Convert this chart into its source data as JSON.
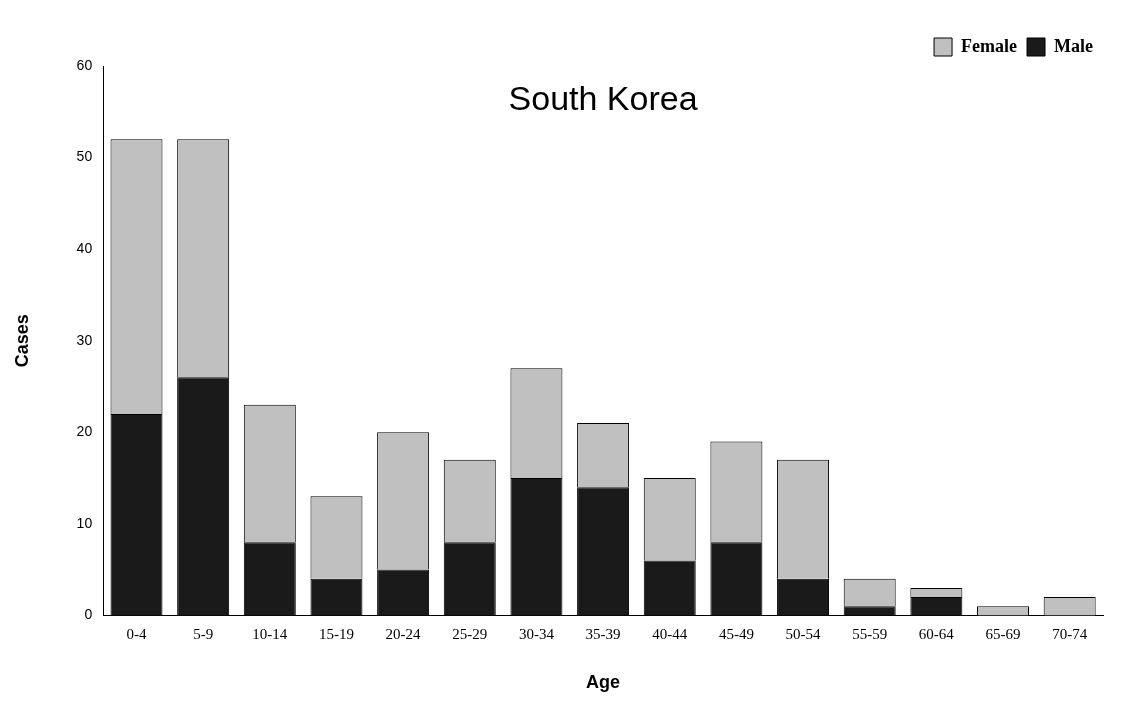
{
  "chart_data": {
    "type": "bar",
    "title": "South Korea",
    "xlabel": "Age",
    "ylabel": "Cases",
    "categories": [
      "0-4",
      "5-9",
      "10-14",
      "15-19",
      "20-24",
      "25-29",
      "30-34",
      "35-39",
      "40-44",
      "45-49",
      "50-54",
      "55-59",
      "60-64",
      "65-69",
      "70-74"
    ],
    "series": [
      {
        "name": "Male",
        "color": "#1a1a1a",
        "values": [
          22,
          26,
          8,
          4,
          5,
          8,
          15,
          14,
          6,
          8,
          4,
          1,
          2,
          0,
          0
        ]
      },
      {
        "name": "Female",
        "color": "#c0c0c0",
        "values": [
          30,
          26,
          15,
          9,
          15,
          9,
          12,
          7,
          9,
          11,
          13,
          3,
          1,
          1,
          2
        ]
      }
    ],
    "stacked": true,
    "ylim": [
      0,
      60
    ],
    "yticks": [
      0,
      10,
      20,
      30,
      40,
      50,
      60
    ],
    "grid": false,
    "legend": "top right"
  }
}
